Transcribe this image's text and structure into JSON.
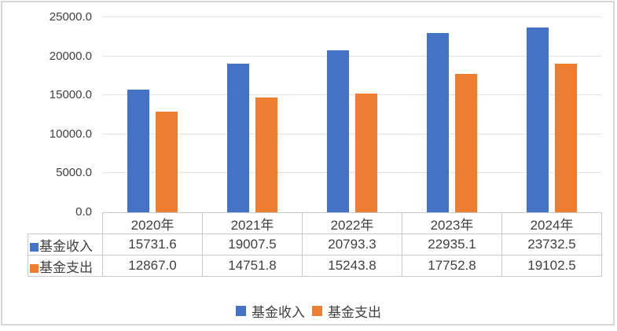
{
  "chart_data": {
    "type": "bar",
    "title": "",
    "xlabel": "",
    "ylabel": "",
    "categories": [
      "2020年",
      "2021年",
      "2022年",
      "2023年",
      "2024年"
    ],
    "series": [
      {
        "name": "基金收入",
        "color": "#4472C4",
        "values": [
          15731.6,
          19007.5,
          20793.3,
          22935.1,
          23732.5
        ]
      },
      {
        "name": "基金支出",
        "color": "#ED7D31",
        "values": [
          12867.0,
          14751.8,
          15243.8,
          17752.8,
          19102.5
        ]
      }
    ],
    "ylim": [
      0,
      25000
    ],
    "ytick_values": [
      0,
      5000,
      10000,
      15000,
      20000,
      25000
    ],
    "ytick_labels": [
      "0.0",
      "5000.0",
      "10000.0",
      "15000.0",
      "20000.0",
      "25000.0"
    ],
    "value_decimals": 1,
    "grid": true,
    "legend_position": "bottom",
    "legend_labels": [
      "基金收入",
      "基金支出"
    ],
    "data_table_shown": true
  },
  "colors": {
    "series_income": "#4472C4",
    "series_expense": "#ED7D31",
    "gridline": "#e2e2e2",
    "table_border": "#c9c9c9",
    "frame_border": "#d6d6d6",
    "text": "#404040"
  }
}
